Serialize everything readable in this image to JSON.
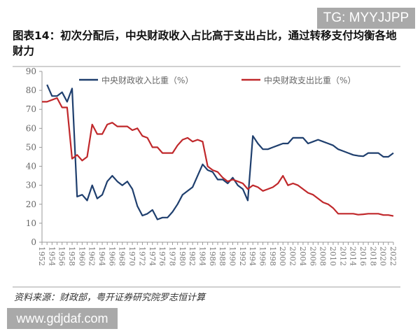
{
  "header": {
    "title": "图表14：初次分配后，中央财政收入占比高于支出占比，通过转移支付均衡各地财力"
  },
  "watermarks": {
    "top": "TG: MYYJJPP",
    "bottom": "www.gdjdaf.com"
  },
  "footer": {
    "source": "资料来源：财政部，粤开证券研究院罗志恒计算"
  },
  "chart_data": {
    "type": "line",
    "title": "",
    "xlabel": "",
    "ylabel": "",
    "ylim": [
      0,
      90
    ],
    "yticks": [
      0,
      10,
      20,
      30,
      40,
      50,
      60,
      70,
      80,
      90
    ],
    "xlim": [
      1952,
      2022
    ],
    "xticks": [
      1952,
      1954,
      1956,
      1958,
      1960,
      1962,
      1964,
      1966,
      1968,
      1970,
      1972,
      1974,
      1976,
      1978,
      1980,
      1982,
      1984,
      1986,
      1988,
      1990,
      1992,
      1994,
      1996,
      1998,
      2000,
      2002,
      2004,
      2006,
      2008,
      2010,
      2012,
      2014,
      2016,
      2018,
      2020,
      2022
    ],
    "grid": false,
    "legend": "top",
    "series": [
      {
        "name": "中央财政收入比重（%）",
        "color": "#1f3f6e",
        "start_year": 1953,
        "values": [
          83,
          77,
          77,
          79,
          74,
          81,
          24,
          25,
          22,
          30,
          23,
          25,
          32,
          35,
          32,
          30,
          32,
          28,
          19,
          14,
          15,
          17,
          12,
          13,
          13,
          16,
          20,
          25,
          27,
          29,
          35,
          41,
          38,
          37,
          33,
          33,
          31,
          34,
          30,
          28,
          22,
          56,
          52,
          49,
          49,
          50,
          51,
          52,
          52,
          55,
          55,
          55,
          52,
          53,
          54,
          53,
          52,
          51,
          49,
          48,
          47,
          46,
          45.5,
          45.3,
          47,
          47,
          47,
          45,
          45,
          47
        ]
      },
      {
        "name": "中央财政支出比重（%）",
        "color": "#c0282b",
        "start_year": 1952,
        "values": [
          74,
          74,
          75,
          76,
          71,
          71,
          44,
          46,
          43,
          45,
          62,
          57,
          57,
          62,
          63,
          61,
          61,
          61,
          59,
          60,
          56,
          55,
          50,
          50,
          47,
          47,
          47,
          51,
          54,
          55,
          53,
          54,
          53,
          40,
          38,
          37,
          34,
          32,
          33,
          32,
          31,
          28,
          30,
          29,
          27,
          28,
          29,
          31,
          35,
          30,
          31,
          30,
          28,
          26,
          25,
          23,
          21,
          20,
          18,
          15,
          15,
          15,
          15,
          14.5,
          14.7,
          15,
          15,
          15,
          14.3,
          14.3,
          13.8
        ]
      }
    ]
  }
}
